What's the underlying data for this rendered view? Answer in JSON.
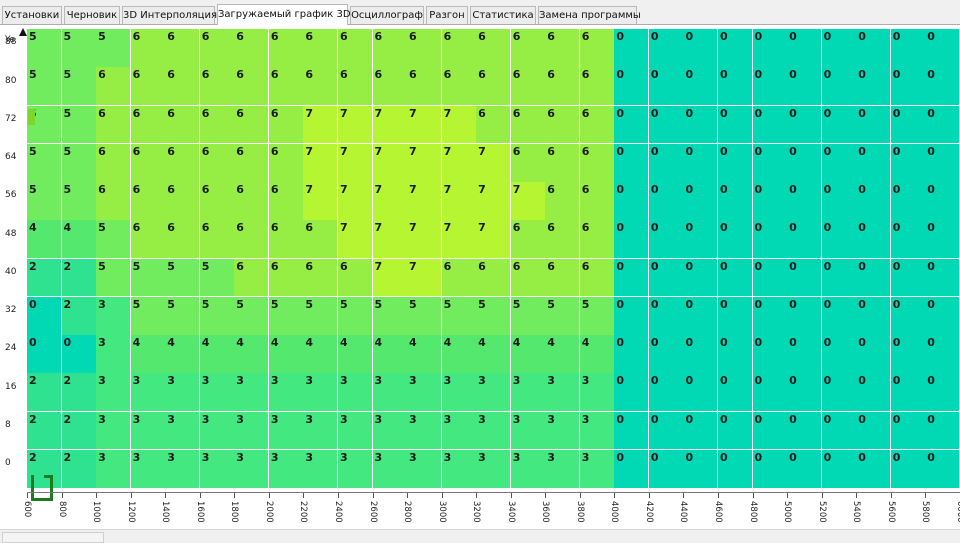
{
  "tabs": [
    {
      "label": "Установки",
      "active": false
    },
    {
      "label": "Черновик",
      "active": false
    },
    {
      "label": "3D Интерполяция",
      "active": false
    },
    {
      "label": "Загружаемый график 3D",
      "active": true
    },
    {
      "label": "Осциллограф",
      "active": false
    },
    {
      "label": "Разгон",
      "active": false
    },
    {
      "label": "Статистика",
      "active": false
    },
    {
      "label": "Замена программы",
      "active": false
    }
  ],
  "y_axis": {
    "name": "Ye",
    "labels": [
      "88",
      "80",
      "72",
      "64",
      "56",
      "48",
      "40",
      "32",
      "24",
      "16",
      "8",
      "0"
    ]
  },
  "x_axis": {
    "labels": [
      "600",
      "800",
      "1000",
      "1200",
      "1400",
      "1600",
      "1800",
      "2000",
      "2200",
      "2400",
      "2600",
      "2800",
      "3000",
      "3200",
      "3400",
      "3600",
      "3800",
      "4000",
      "4200",
      "4400",
      "4600",
      "4800",
      "5000",
      "5200",
      "5400",
      "5600",
      "5800",
      "6000"
    ]
  },
  "table": {
    "rows": [
      [
        5,
        5,
        5,
        6,
        6,
        6,
        6,
        6,
        6,
        6,
        6,
        6,
        6,
        6,
        6,
        6,
        6,
        0,
        0,
        0,
        0,
        0,
        0,
        0,
        0,
        0,
        0,
        0
      ],
      [
        5,
        5,
        6,
        6,
        6,
        6,
        6,
        6,
        6,
        6,
        6,
        6,
        6,
        6,
        6,
        6,
        6,
        0,
        0,
        0,
        0,
        0,
        0,
        0,
        0,
        0,
        0,
        0
      ],
      [
        5,
        5,
        6,
        6,
        6,
        6,
        6,
        6,
        7,
        7,
        7,
        7,
        7,
        6,
        6,
        6,
        6,
        0,
        0,
        0,
        0,
        0,
        0,
        0,
        0,
        0,
        0,
        0
      ],
      [
        5,
        5,
        6,
        6,
        6,
        6,
        6,
        6,
        7,
        7,
        7,
        7,
        7,
        7,
        6,
        6,
        6,
        0,
        0,
        0,
        0,
        0,
        0,
        0,
        0,
        0,
        0,
        0
      ],
      [
        5,
        5,
        6,
        6,
        6,
        6,
        6,
        6,
        7,
        7,
        7,
        7,
        7,
        7,
        7,
        6,
        6,
        0,
        0,
        0,
        0,
        0,
        0,
        0,
        0,
        0,
        0,
        0
      ],
      [
        4,
        4,
        5,
        6,
        6,
        6,
        6,
        6,
        6,
        7,
        7,
        7,
        7,
        7,
        6,
        6,
        6,
        0,
        0,
        0,
        0,
        0,
        0,
        0,
        0,
        0,
        0,
        0
      ],
      [
        2,
        2,
        5,
        5,
        5,
        5,
        6,
        6,
        6,
        6,
        7,
        7,
        6,
        6,
        6,
        6,
        6,
        0,
        0,
        0,
        0,
        0,
        0,
        0,
        0,
        0,
        0,
        0
      ],
      [
        0,
        2,
        3,
        5,
        5,
        5,
        5,
        5,
        5,
        5,
        5,
        5,
        5,
        5,
        5,
        5,
        5,
        0,
        0,
        0,
        0,
        0,
        0,
        0,
        0,
        0,
        0,
        0
      ],
      [
        0,
        0,
        3,
        4,
        4,
        4,
        4,
        4,
        4,
        4,
        4,
        4,
        4,
        4,
        4,
        4,
        4,
        0,
        0,
        0,
        0,
        0,
        0,
        0,
        0,
        0,
        0,
        0
      ],
      [
        2,
        2,
        3,
        3,
        3,
        3,
        3,
        3,
        3,
        3,
        3,
        3,
        3,
        3,
        3,
        3,
        3,
        0,
        0,
        0,
        0,
        0,
        0,
        0,
        0,
        0,
        0,
        0
      ],
      [
        2,
        2,
        3,
        3,
        3,
        3,
        3,
        3,
        3,
        3,
        3,
        3,
        3,
        3,
        3,
        3,
        3,
        0,
        0,
        0,
        0,
        0,
        0,
        0,
        0,
        0,
        0,
        0
      ],
      [
        2,
        2,
        3,
        3,
        3,
        3,
        3,
        3,
        3,
        3,
        3,
        3,
        3,
        3,
        3,
        3,
        3,
        0,
        0,
        0,
        0,
        0,
        0,
        0,
        0,
        0,
        0,
        0
      ]
    ]
  },
  "value_colors": {
    "0": "#00d9b3",
    "2": "#2fe28f",
    "3": "#43e880",
    "4": "#55e86f",
    "5": "#71ec5e",
    "6": "#96ee44",
    "7": "#b6f531"
  }
}
